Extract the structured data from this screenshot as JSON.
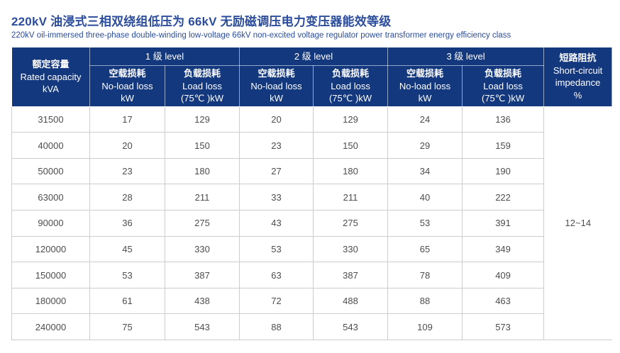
{
  "page": {
    "title": "220kV 油浸式三相双绕组低压为 66kV 无励磁调压电力变压器能效等级",
    "subtitle": "220kV oil-immersed three-phase double-winding low-voltage 66kV non-excited voltage regulator power transformer energy efficiency class"
  },
  "colors": {
    "header_bg": "#14387E",
    "header_text": "#FFFFFF",
    "title_text": "#2B4D9B",
    "body_text": "#4D4D4D",
    "grid_line": "#CDCDCD"
  },
  "table": {
    "header": {
      "capacity": {
        "zh": "额定容量",
        "en": "Rated capacity",
        "unit": "kVA"
      },
      "levels": [
        {
          "label": "1 级 level"
        },
        {
          "label": "2 级 level"
        },
        {
          "label": "3 级 level"
        }
      ],
      "no_load": {
        "zh": "空载损耗",
        "en": "No-load loss",
        "unit": "kW"
      },
      "load": {
        "zh": "负载损耗",
        "en": "Load loss",
        "unit": "(75℃ )kW"
      },
      "impedance": {
        "zh": "短路阻抗",
        "en": "Short-circuit",
        "en2": "impedance",
        "unit": "%"
      }
    },
    "rows": [
      {
        "capacity": "31500",
        "values": [
          "17",
          "129",
          "20",
          "129",
          "24",
          "136"
        ]
      },
      {
        "capacity": "40000",
        "values": [
          "20",
          "150",
          "23",
          "150",
          "29",
          "159"
        ]
      },
      {
        "capacity": "50000",
        "values": [
          "23",
          "180",
          "27",
          "180",
          "34",
          "190"
        ]
      },
      {
        "capacity": "63000",
        "values": [
          "28",
          "211",
          "33",
          "211",
          "40",
          "222"
        ]
      },
      {
        "capacity": "90000",
        "values": [
          "36",
          "275",
          "43",
          "275",
          "53",
          "391"
        ]
      },
      {
        "capacity": "120000",
        "values": [
          "45",
          "330",
          "53",
          "330",
          "65",
          "349"
        ]
      },
      {
        "capacity": "150000",
        "values": [
          "53",
          "387",
          "63",
          "387",
          "78",
          "409"
        ]
      },
      {
        "capacity": "180000",
        "values": [
          "61",
          "438",
          "72",
          "488",
          "88",
          "463"
        ]
      },
      {
        "capacity": "240000",
        "values": [
          "75",
          "543",
          "88",
          "543",
          "109",
          "573"
        ]
      }
    ],
    "impedance_value": "12~14"
  }
}
